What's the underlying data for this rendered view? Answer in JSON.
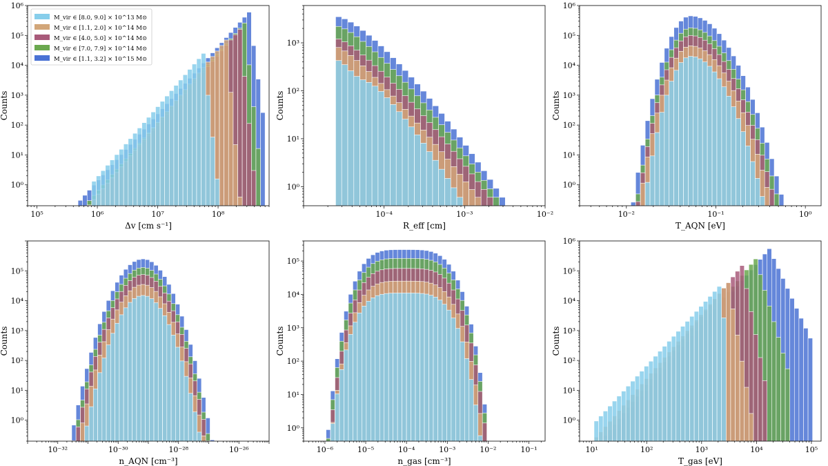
{
  "figure": {
    "legend": {
      "placement": "top-left",
      "entries": [
        {
          "label": "M_vir ∈ [8.0, 9.0] × 10^13 M⊙",
          "color": "#87ceeb"
        },
        {
          "label": "M_vir ∈ [1.1, 2.0] × 10^14 M⊙",
          "color": "#d2a679"
        },
        {
          "label": "M_vir ∈ [4.0, 5.0] × 10^14 M⊙",
          "color": "#a85a7a"
        },
        {
          "label": "M_vir ∈ [7.0, 7.9] × 10^14 M⊙",
          "color": "#6aa84f"
        },
        {
          "label": "M_vir ∈ [1.1, 3.2] × 10^15 M⊙",
          "color": "#4a72d4"
        }
      ]
    }
  },
  "chart_data": [
    {
      "type": "bar",
      "xlabel": "Δv [cm s⁻¹]",
      "ylabel": "Counts",
      "xscale": "log",
      "yscale": "log",
      "xlim": [
        70000,
        700000000
      ],
      "ylim": [
        0.2,
        1000000
      ],
      "xticks": [
        {
          "v": 100000,
          "label": "10⁵"
        },
        {
          "v": 1000000,
          "label": "10⁶"
        },
        {
          "v": 10000000,
          "label": "10⁷"
        },
        {
          "v": 100000000,
          "label": "10⁸"
        }
      ],
      "yticks": [
        {
          "v": 1,
          "label": "10⁰"
        },
        {
          "v": 10,
          "label": "10¹"
        },
        {
          "v": 100,
          "label": "10²"
        },
        {
          "v": 1000,
          "label": "10³"
        },
        {
          "v": 10000,
          "label": "10⁴"
        },
        {
          "v": 100000,
          "label": "10⁵"
        },
        {
          "v": 1000000,
          "label": "10⁶"
        }
      ],
      "bins": {
        "start": 100000,
        "end": 600000000,
        "n": 50
      },
      "series": [
        {
          "name": "M_vir ∈ [1.1, 3.2] × 10^15 M⊙",
          "color": "#4a72d4",
          "curve": {
            "type": "powerlaw",
            "peak": 600000,
            "peak_bin": 46,
            "alpha": 1.48,
            "drop": 3.2,
            "start_bin": 0,
            "end_bin": 49
          }
        },
        {
          "name": "M_vir ∈ [7.0, 7.9] × 10^14 M⊙",
          "color": "#6aa84f",
          "curve": {
            "type": "powerlaw",
            "peak": 260000,
            "peak_bin": 45,
            "alpha": 1.52,
            "drop": 4.0,
            "start_bin": 2,
            "end_bin": 48
          }
        },
        {
          "name": "M_vir ∈ [4.0, 5.0] × 10^14 M⊙",
          "color": "#a85a7a",
          "curve": {
            "type": "powerlaw",
            "peak": 160000,
            "peak_bin": 44,
            "alpha": 1.55,
            "drop": 4.5,
            "start_bin": 5,
            "end_bin": 47
          }
        },
        {
          "name": "M_vir ∈ [1.1, 2.0] × 10^14 M⊙",
          "color": "#d2a679",
          "curve": {
            "type": "powerlaw",
            "peak": 70000,
            "peak_bin": 41,
            "alpha": 1.6,
            "drop": 5.0,
            "start_bin": 7,
            "end_bin": 44
          }
        },
        {
          "name": "M_vir ∈ [8.0, 9.0] × 10^13 M⊙",
          "color": "#87ceeb",
          "curve": {
            "type": "powerlaw",
            "peak": 25000,
            "peak_bin": 36,
            "alpha": 1.55,
            "drop": 4.0,
            "start_bin": 12,
            "end_bin": 41
          }
        }
      ]
    },
    {
      "type": "bar",
      "xlabel": "R_eff [cm]",
      "ylabel": "Counts",
      "xscale": "log",
      "yscale": "log",
      "xlim": [
        1e-05,
        0.01
      ],
      "ylim": [
        0.4,
        6000
      ],
      "xticks": [
        {
          "v": 0.0001,
          "label": "10⁻⁴"
        },
        {
          "v": 0.001,
          "label": "10⁻³"
        },
        {
          "v": 0.01,
          "label": "10⁻²"
        }
      ],
      "yticks": [
        {
          "v": 1,
          "label": "10⁰"
        },
        {
          "v": 10,
          "label": "10¹"
        },
        {
          "v": 100,
          "label": "10²"
        },
        {
          "v": 1000,
          "label": "10³"
        }
      ],
      "bins": {
        "start": 2.5e-05,
        "end": 0.0032,
        "n": 28
      },
      "series": [
        {
          "name": "M_vir ∈ [1.1, 3.2] × 10^15 M⊙",
          "color": "#4a72d4",
          "curve": {
            "type": "decay",
            "peak": 3500,
            "end_value": 0.6,
            "shape": 1.35,
            "start_bin": 0,
            "end_bin": 27
          }
        },
        {
          "name": "M_vir ∈ [7.0, 7.9] × 10^14 M⊙",
          "color": "#6aa84f",
          "curve": {
            "type": "decay",
            "peak": 2200,
            "end_value": 0.6,
            "shape": 1.3,
            "start_bin": 0,
            "end_bin": 26
          }
        },
        {
          "name": "M_vir ∈ [4.0, 5.0] × 10^14 M⊙",
          "color": "#a85a7a",
          "curve": {
            "type": "decay",
            "peak": 1200,
            "end_value": 0.6,
            "shape": 1.25,
            "start_bin": 0,
            "end_bin": 25
          }
        },
        {
          "name": "M_vir ∈ [1.1, 2.0] × 10^14 M⊙",
          "color": "#d2a679",
          "curve": {
            "type": "decay",
            "peak": 800,
            "end_value": 0.6,
            "shape": 1.2,
            "start_bin": 0,
            "end_bin": 23
          }
        },
        {
          "name": "M_vir ∈ [8.0, 9.0] × 10^13 M⊙",
          "color": "#87ceeb",
          "curve": {
            "type": "decay",
            "peak": 450,
            "end_value": 0.6,
            "shape": 1.4,
            "start_bin": 0,
            "end_bin": 20,
            "dip": true
          }
        }
      ]
    },
    {
      "type": "bar",
      "xlabel": "T_AQN [eV]",
      "ylabel": "Counts",
      "xscale": "log",
      "yscale": "log",
      "xlim": [
        0.003,
        1.5
      ],
      "ylim": [
        0.2,
        1000000
      ],
      "xticks": [
        {
          "v": 0.01,
          "label": "10⁻²"
        },
        {
          "v": 0.1,
          "label": "10⁻¹"
        },
        {
          "v": 1,
          "label": "10⁰"
        }
      ],
      "yticks": [
        {
          "v": 1,
          "label": "10⁰"
        },
        {
          "v": 10,
          "label": "10¹"
        },
        {
          "v": 100,
          "label": "10²"
        },
        {
          "v": 1000,
          "label": "10³"
        },
        {
          "v": 10000,
          "label": "10⁴"
        },
        {
          "v": 100000,
          "label": "10⁵"
        },
        {
          "v": 1000000,
          "label": "10⁶"
        }
      ],
      "bins": {
        "start": 0.0042,
        "end": 1.2,
        "n": 46
      },
      "series": [
        {
          "name": "M_vir ∈ [1.1, 3.2] × 10^15 M⊙",
          "color": "#4a72d4",
          "curve": {
            "type": "bell",
            "peak": 450000,
            "center_bin": 20,
            "left": 3.4,
            "right": 5.5,
            "start_bin": 0,
            "end_bin": 45
          }
        },
        {
          "name": "M_vir ∈ [7.0, 7.9] × 10^14 M⊙",
          "color": "#6aa84f",
          "curve": {
            "type": "bell",
            "peak": 180000,
            "center_bin": 20,
            "left": 3.3,
            "right": 5.4,
            "start_bin": 2,
            "end_bin": 43
          }
        },
        {
          "name": "M_vir ∈ [4.0, 5.0] × 10^14 M⊙",
          "color": "#a85a7a",
          "curve": {
            "type": "bell",
            "peak": 100000,
            "center_bin": 20,
            "left": 3.3,
            "right": 5.3,
            "start_bin": 3,
            "end_bin": 42
          }
        },
        {
          "name": "M_vir ∈ [1.1, 2.0] × 10^14 M⊙",
          "color": "#d2a679",
          "curve": {
            "type": "bell",
            "peak": 45000,
            "center_bin": 20,
            "left": 3.3,
            "right": 5.2,
            "start_bin": 5,
            "end_bin": 41
          }
        },
        {
          "name": "M_vir ∈ [8.0, 9.0] × 10^13 M⊙",
          "color": "#87ceeb",
          "curve": {
            "type": "bell",
            "peak": 20000,
            "center_bin": 20,
            "left": 3.1,
            "right": 4.9,
            "start_bin": 7,
            "end_bin": 40
          }
        }
      ]
    },
    {
      "type": "bar",
      "xlabel": "n_AQN [cm⁻³]",
      "ylabel": "Counts",
      "xscale": "log",
      "yscale": "log",
      "xlim": 1e-33,
      "xlim_hi": 1e-25,
      "ylim": [
        0.2,
        1000000
      ],
      "xticks": [
        {
          "v": 1e-32,
          "label": "10⁻³²"
        },
        {
          "v": 1e-30,
          "label": "10⁻³⁰"
        },
        {
          "v": 1e-28,
          "label": "10⁻²⁸"
        },
        {
          "v": 1e-26,
          "label": "10⁻²⁶"
        }
      ],
      "yticks": [
        {
          "v": 1,
          "label": "10⁰"
        },
        {
          "v": 10,
          "label": "10¹"
        },
        {
          "v": 100,
          "label": "10²"
        },
        {
          "v": 1000,
          "label": "10³"
        },
        {
          "v": 10000,
          "label": "10⁴"
        },
        {
          "v": 100000,
          "label": "10⁵"
        }
      ],
      "bins": {
        "start": 4e-33,
        "end": 3e-26,
        "n": 48
      },
      "series": [
        {
          "name": "M_vir ∈ [1.1, 3.2] × 10^15 M⊙",
          "color": "#4a72d4",
          "curve": {
            "type": "bell",
            "peak": 250000,
            "center_bin": 22,
            "left": 4.8,
            "right": 4.6,
            "start_bin": 0,
            "end_bin": 47
          }
        },
        {
          "name": "M_vir ∈ [7.0, 7.9] × 10^14 M⊙",
          "color": "#6aa84f",
          "curve": {
            "type": "bell",
            "peak": 130000,
            "center_bin": 22,
            "left": 4.7,
            "right": 4.5,
            "start_bin": 3,
            "end_bin": 46
          }
        },
        {
          "name": "M_vir ∈ [4.0, 5.0] × 10^14 M⊙",
          "color": "#a85a7a",
          "curve": {
            "type": "bell",
            "peak": 75000,
            "center_bin": 22,
            "left": 4.7,
            "right": 4.5,
            "start_bin": 4,
            "end_bin": 46
          }
        },
        {
          "name": "M_vir ∈ [1.1, 2.0] × 10^14 M⊙",
          "color": "#d2a679",
          "curve": {
            "type": "bell",
            "peak": 35000,
            "center_bin": 22,
            "left": 4.6,
            "right": 4.4,
            "start_bin": 5,
            "end_bin": 45
          }
        },
        {
          "name": "M_vir ∈ [8.0, 9.0] × 10^13 M⊙",
          "color": "#87ceeb",
          "curve": {
            "type": "bell",
            "peak": 15000,
            "center_bin": 22,
            "left": 4.4,
            "right": 4.3,
            "start_bin": 6,
            "end_bin": 44
          }
        }
      ]
    },
    {
      "type": "bar",
      "xlabel": "n_gas [cm⁻³]",
      "ylabel": "Counts",
      "xscale": "log",
      "yscale": "log",
      "xlim": [
        3e-07,
        0.25
      ],
      "ylim": [
        0.4,
        400000
      ],
      "xticks": [
        {
          "v": 1e-06,
          "label": "10⁻⁶"
        },
        {
          "v": 1e-05,
          "label": "10⁻⁵"
        },
        {
          "v": 0.0001,
          "label": "10⁻⁴"
        },
        {
          "v": 0.001,
          "label": "10⁻³"
        },
        {
          "v": 0.01,
          "label": "10⁻²"
        },
        {
          "v": 0.1,
          "label": "10⁻¹"
        }
      ],
      "yticks": [
        {
          "v": 1,
          "label": "10⁰"
        },
        {
          "v": 10,
          "label": "10¹"
        },
        {
          "v": 100,
          "label": "10²"
        },
        {
          "v": 1000,
          "label": "10³"
        },
        {
          "v": 10000,
          "label": "10⁴"
        },
        {
          "v": 100000,
          "label": "10⁵"
        }
      ],
      "bins": {
        "start": 5e-07,
        "end": 0.15,
        "n": 50
      },
      "series": [
        {
          "name": "M_vir ∈ [1.1, 3.2] × 10^15 M⊙",
          "color": "#4a72d4",
          "curve": {
            "type": "plateau",
            "peak": 220000,
            "center_bin": 20,
            "left": 5.0,
            "right": 5.5,
            "start_bin": 0,
            "end_bin": 49
          }
        },
        {
          "name": "M_vir ∈ [7.0, 7.9] × 10^14 M⊙",
          "color": "#6aa84f",
          "curve": {
            "type": "plateau",
            "peak": 120000,
            "center_bin": 20,
            "left": 5.0,
            "right": 5.5,
            "start_bin": 1,
            "end_bin": 48
          }
        },
        {
          "name": "M_vir ∈ [4.0, 5.0] × 10^14 M⊙",
          "color": "#a85a7a",
          "curve": {
            "type": "plateau",
            "peak": 60000,
            "center_bin": 20,
            "left": 5.0,
            "right": 5.5,
            "start_bin": 2,
            "end_bin": 47
          }
        },
        {
          "name": "M_vir ∈ [1.1, 2.0] × 10^14 M⊙",
          "color": "#d2a679",
          "curve": {
            "type": "plateau",
            "peak": 25000,
            "center_bin": 20,
            "left": 5.0,
            "right": 5.4,
            "start_bin": 3,
            "end_bin": 46
          }
        },
        {
          "name": "M_vir ∈ [8.0, 9.0] × 10^13 M⊙",
          "color": "#87ceeb",
          "curve": {
            "type": "plateau",
            "peak": 11000,
            "center_bin": 20,
            "left": 5.1,
            "right": 5.3,
            "start_bin": 3,
            "end_bin": 46
          }
        }
      ]
    },
    {
      "type": "bar",
      "xlabel": "T_gas [eV]",
      "ylabel": "Counts",
      "xscale": "log",
      "yscale": "log",
      "xlim": [
        6,
        150000
      ],
      "ylim": [
        0.2,
        1000000
      ],
      "xticks": [
        {
          "v": 10,
          "label": "10¹"
        },
        {
          "v": 100,
          "label": "10²"
        },
        {
          "v": 1000,
          "label": "10³"
        },
        {
          "v": 10000,
          "label": "10⁴"
        },
        {
          "v": 100000,
          "label": "10⁵"
        }
      ],
      "yticks": [
        {
          "v": 1,
          "label": "10⁰"
        },
        {
          "v": 10,
          "label": "10¹"
        },
        {
          "v": 100,
          "label": "10²"
        },
        {
          "v": 1000,
          "label": "10³"
        },
        {
          "v": 10000,
          "label": "10⁴"
        },
        {
          "v": 100000,
          "label": "10⁵"
        },
        {
          "v": 1000000,
          "label": "10⁶"
        }
      ],
      "bins": {
        "start": 11,
        "end": 105000,
        "n": 48
      },
      "series": [
        {
          "name": "M_vir ∈ [1.1, 3.2] × 10^15 M⊙",
          "color": "#4a72d4",
          "curve": {
            "type": "powerlaw",
            "peak": 550000,
            "peak_bin": 38,
            "alpha": 1.55,
            "drop": 0.95,
            "start_bin": 0,
            "end_bin": 47
          }
        },
        {
          "name": "M_vir ∈ [7.0, 7.9] × 10^14 M⊙",
          "color": "#6aa84f",
          "curve": {
            "type": "powerlaw",
            "peak": 250000,
            "peak_bin": 35,
            "alpha": 1.6,
            "drop": 1.5,
            "start_bin": 0,
            "end_bin": 42
          }
        },
        {
          "name": "M_vir ∈ [4.0, 5.0] × 10^14 M⊙",
          "color": "#a85a7a",
          "curve": {
            "type": "powerlaw",
            "peak": 150000,
            "peak_bin": 32,
            "alpha": 1.65,
            "drop": 2.2,
            "start_bin": 0,
            "end_bin": 37
          }
        },
        {
          "name": "M_vir ∈ [1.1, 2.0] × 10^14 M⊙",
          "color": "#d2a679",
          "curve": {
            "type": "powerlaw",
            "peak": 40000,
            "peak_bin": 29,
            "alpha": 1.55,
            "drop": 2.5,
            "start_bin": 0,
            "end_bin": 34
          }
        },
        {
          "name": "M_vir ∈ [8.0, 9.0] × 10^13 M⊙",
          "color": "#87ceeb",
          "curve": {
            "type": "powerlaw",
            "peak": 30000,
            "peak_bin": 27,
            "alpha": 1.45,
            "drop": 3.0,
            "start_bin": 0,
            "end_bin": 28
          }
        }
      ]
    }
  ]
}
